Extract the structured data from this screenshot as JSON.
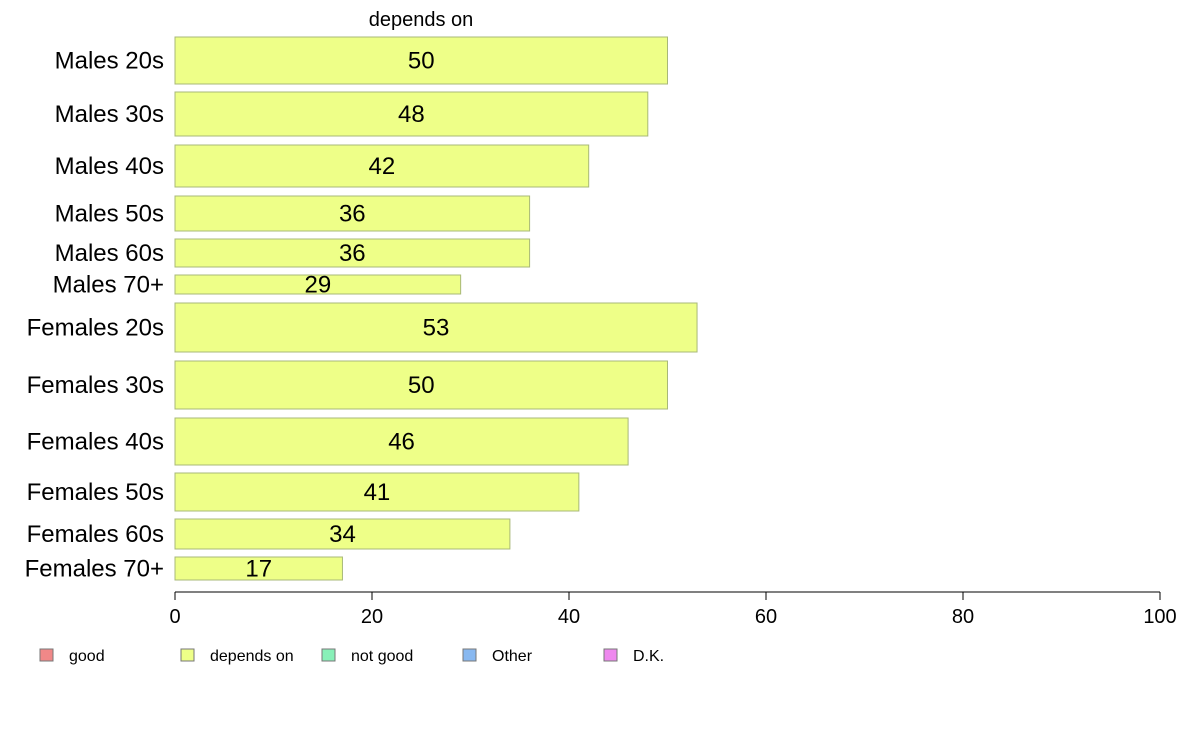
{
  "chart_data": {
    "type": "bar",
    "orientation": "horizontal",
    "title": "depends on",
    "categories": [
      "Males 20s",
      "Males 30s",
      "Males 40s",
      "Males 50s",
      "Males 60s",
      "Males 70+",
      "Females 20s",
      "Females 30s",
      "Females 40s",
      "Females 50s",
      "Females 60s",
      "Females 70+"
    ],
    "series": [
      {
        "name": "depends on",
        "values": [
          50,
          48,
          42,
          36,
          36,
          29,
          53,
          50,
          46,
          41,
          34,
          17
        ],
        "color": "#EEFF88"
      }
    ],
    "data_labels": [
      "50",
      "48",
      "42",
      "36",
      "36",
      "29",
      "53",
      "50",
      "46",
      "41",
      "34",
      "17"
    ],
    "xlim": [
      0,
      100
    ],
    "xticks": [
      0,
      20,
      40,
      60,
      80,
      100
    ],
    "xtick_labels": [
      "0",
      "20",
      "40",
      "60",
      "80",
      "100"
    ],
    "grid": false,
    "legend": {
      "placement": "bottom",
      "entries": [
        {
          "label": "good",
          "color": "#F08888"
        },
        {
          "label": "depends on",
          "color": "#EEFF88"
        },
        {
          "label": "not good",
          "color": "#88F0B8"
        },
        {
          "label": "Other",
          "color": "#88B8F0"
        },
        {
          "label": "D.K.",
          "color": "#EE88EE"
        }
      ]
    },
    "bar_edge_color": "#A8B878"
  }
}
